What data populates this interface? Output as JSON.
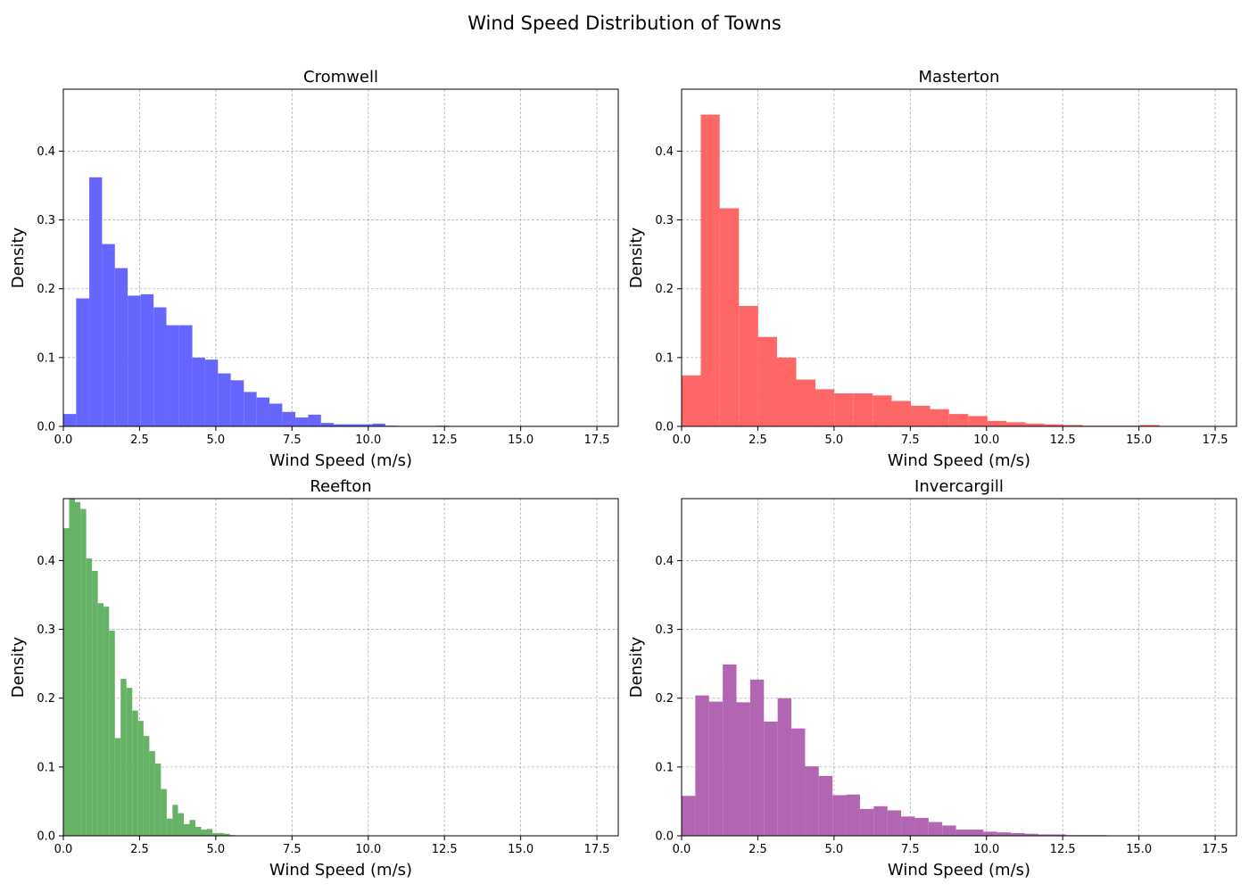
{
  "figure": {
    "title": "Wind Speed Distribution of Towns"
  },
  "chart_data": [
    {
      "type": "bar",
      "title": "Cromwell",
      "xlabel": "Wind Speed (m/s)",
      "ylabel": "Density",
      "xlim": [
        0,
        18.2
      ],
      "ylim": [
        0,
        0.49
      ],
      "xticks": [
        "0.0",
        "2.5",
        "5.0",
        "7.5",
        "10.0",
        "12.5",
        "15.0",
        "17.5"
      ],
      "yticks": [
        "0.0",
        "0.1",
        "0.2",
        "0.3",
        "0.4"
      ],
      "grid": true,
      "color": "#6666ff",
      "bin_edges": [
        0,
        0.42,
        0.85,
        1.27,
        1.69,
        2.11,
        2.54,
        2.96,
        3.38,
        3.8,
        4.23,
        4.65,
        5.07,
        5.49,
        5.92,
        6.34,
        6.76,
        7.18,
        7.61,
        8.03,
        8.45,
        8.87,
        9.3,
        9.72,
        10.14,
        10.56,
        10.99,
        11.41,
        11.83,
        12.25,
        12.68,
        13.1
      ],
      "values": [
        0.018,
        0.186,
        0.362,
        0.265,
        0.23,
        0.19,
        0.192,
        0.173,
        0.147,
        0.147,
        0.1,
        0.097,
        0.077,
        0.067,
        0.05,
        0.042,
        0.033,
        0.021,
        0.013,
        0.017,
        0.005,
        0.003,
        0.003,
        0.003,
        0.004,
        0.001,
        0,
        0,
        0,
        0.001,
        0
      ]
    },
    {
      "type": "bar",
      "title": "Masterton",
      "xlabel": "Wind Speed (m/s)",
      "ylabel": "Density",
      "xlim": [
        0,
        18.2
      ],
      "ylim": [
        0,
        0.49
      ],
      "xticks": [
        "0.0",
        "2.5",
        "5.0",
        "7.5",
        "10.0",
        "12.5",
        "15.0",
        "17.5"
      ],
      "yticks": [
        "0.0",
        "0.1",
        "0.2",
        "0.3",
        "0.4"
      ],
      "grid": true,
      "color": "#ff6666",
      "bin_edges": [
        0,
        0.63,
        1.25,
        1.88,
        2.51,
        3.13,
        3.76,
        4.39,
        5.01,
        5.64,
        6.27,
        6.89,
        7.52,
        8.15,
        8.77,
        9.4,
        10.03,
        10.65,
        11.28,
        11.91,
        12.53,
        13.16,
        13.79,
        14.41,
        15.04,
        15.67
      ],
      "values": [
        0.074,
        0.453,
        0.317,
        0.175,
        0.13,
        0.1,
        0.068,
        0.054,
        0.048,
        0.048,
        0.045,
        0.037,
        0.03,
        0.025,
        0.018,
        0.015,
        0.008,
        0.006,
        0.004,
        0.003,
        0.002,
        0.001,
        0.001,
        0.001,
        0.002
      ]
    },
    {
      "type": "bar",
      "title": "Reefton",
      "xlabel": "Wind Speed (m/s)",
      "ylabel": "Density",
      "xlim": [
        0,
        18.2
      ],
      "ylim": [
        0,
        0.49
      ],
      "xticks": [
        "0.0",
        "2.5",
        "5.0",
        "7.5",
        "10.0",
        "12.5",
        "15.0",
        "17.5"
      ],
      "yticks": [
        "0.0",
        "0.1",
        "0.2",
        "0.3",
        "0.4"
      ],
      "grid": true,
      "color": "#66b266",
      "bin_edges": [
        0,
        0.19,
        0.38,
        0.56,
        0.75,
        0.94,
        1.13,
        1.32,
        1.5,
        1.69,
        1.88,
        2.07,
        2.26,
        2.45,
        2.63,
        2.82,
        3.01,
        3.2,
        3.39,
        3.58,
        3.76,
        3.95,
        4.14,
        4.33,
        4.52,
        4.71,
        4.89,
        5.08,
        5.27,
        5.46,
        5.65
      ],
      "values": [
        0.447,
        0.49,
        0.485,
        0.475,
        0.403,
        0.385,
        0.338,
        0.333,
        0.298,
        0.142,
        0.228,
        0.215,
        0.182,
        0.167,
        0.145,
        0.123,
        0.105,
        0.068,
        0.025,
        0.045,
        0.033,
        0.017,
        0.023,
        0.013,
        0.009,
        0.01,
        0.004,
        0.004,
        0.003,
        0.001
      ]
    },
    {
      "type": "bar",
      "title": "Invercargill",
      "xlabel": "Wind Speed (m/s)",
      "ylabel": "Density",
      "xlim": [
        0,
        18.2
      ],
      "ylim": [
        0,
        0.49
      ],
      "xticks": [
        "0.0",
        "2.5",
        "5.0",
        "7.5",
        "10.0",
        "12.5",
        "15.0",
        "17.5"
      ],
      "yticks": [
        "0.0",
        "0.1",
        "0.2",
        "0.3",
        "0.4"
      ],
      "grid": true,
      "color": "#b266b2",
      "bin_edges": [
        0,
        0.45,
        0.9,
        1.35,
        1.8,
        2.25,
        2.7,
        3.15,
        3.6,
        4.05,
        4.5,
        4.95,
        5.4,
        5.85,
        6.3,
        6.75,
        7.2,
        7.65,
        8.1,
        8.55,
        9.0,
        9.45,
        9.9,
        10.35,
        10.8,
        11.25,
        11.7,
        12.15,
        12.6,
        13.05,
        13.5,
        13.95
      ],
      "values": [
        0.058,
        0.204,
        0.195,
        0.249,
        0.194,
        0.227,
        0.166,
        0.2,
        0.156,
        0.101,
        0.087,
        0.059,
        0.06,
        0.039,
        0.043,
        0.037,
        0.028,
        0.026,
        0.02,
        0.015,
        0.009,
        0.009,
        0.006,
        0.005,
        0.004,
        0.003,
        0.002,
        0.002,
        0.001,
        0.001,
        0.001
      ]
    }
  ]
}
